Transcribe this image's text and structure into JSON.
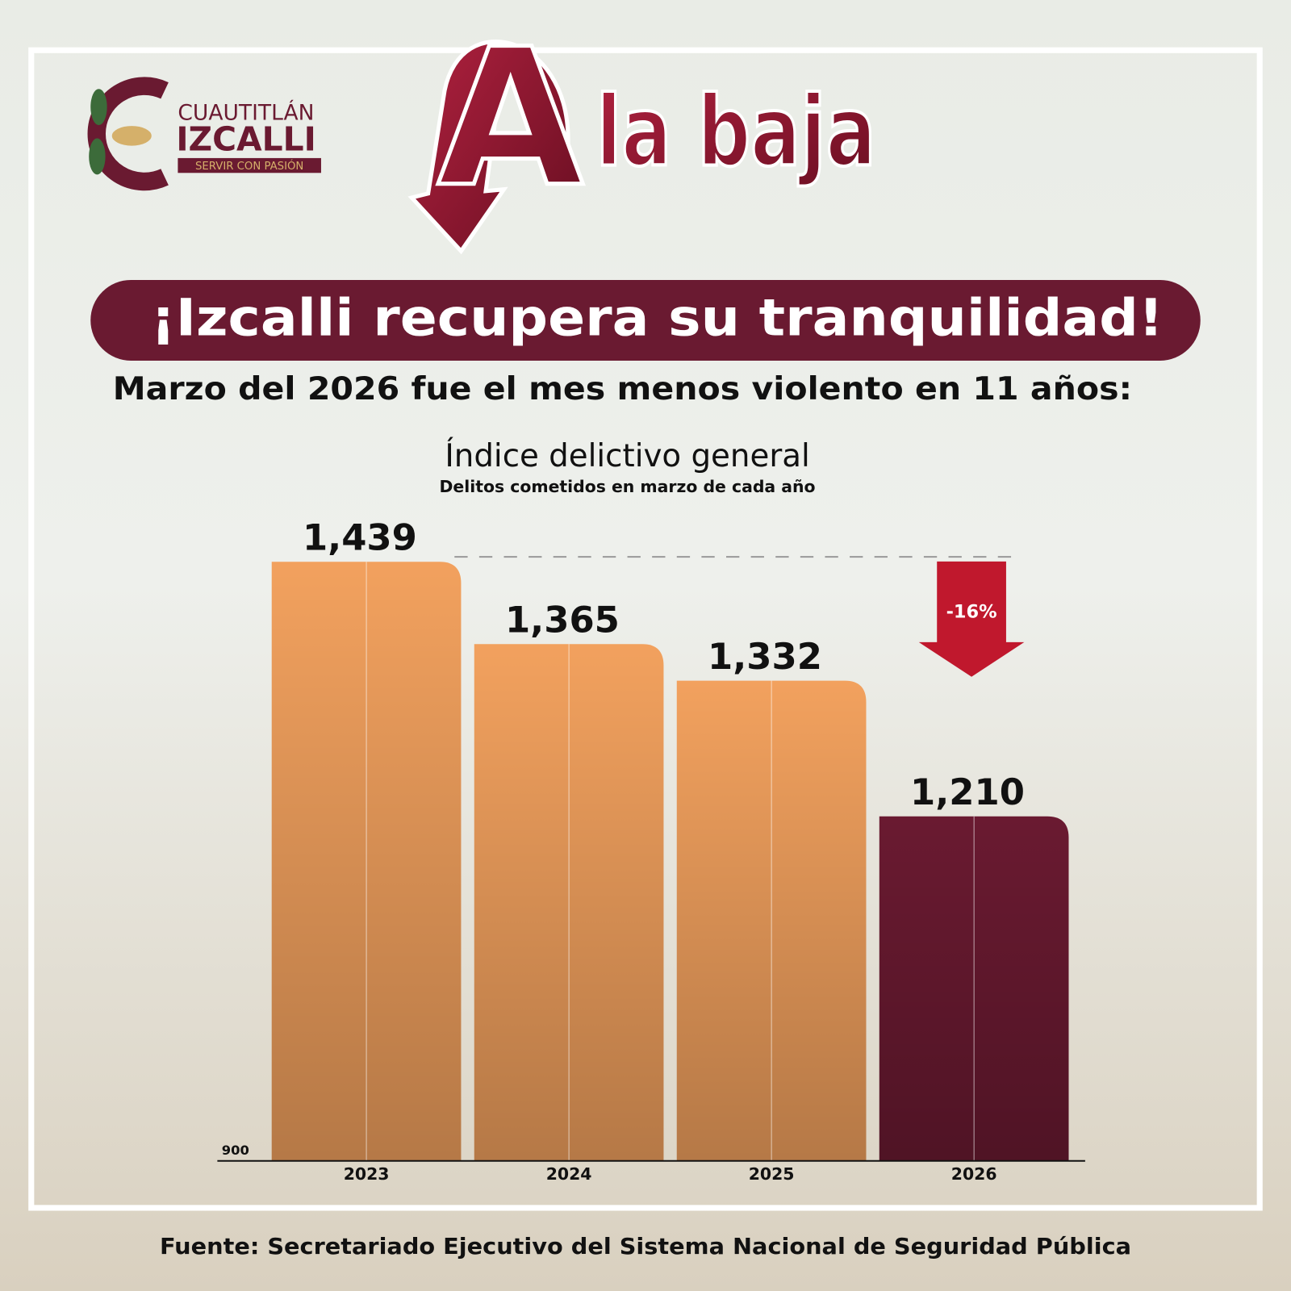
{
  "header": {
    "logo_line1": "CUAUTITLÁN",
    "logo_line2": "IZCALLI",
    "logo_tagline": "SERVIR CON PASIÓN",
    "headline_letter": "A",
    "headline": "la baja",
    "banner": "¡Izcalli recupera su tranquilidad!",
    "statement": "Marzo del 2026 fue el mes menos violento en 11 años:"
  },
  "chart_data": {
    "type": "bar",
    "title": "Índice delictivo general",
    "subtitle": "Delitos cometidos en marzo de cada año",
    "categories": [
      "2023",
      "2024",
      "2025",
      "2026"
    ],
    "values": [
      1439,
      1365,
      1332,
      1210
    ],
    "value_labels": [
      "1,439",
      "1,365",
      "1,332",
      "1,210"
    ],
    "colors": [
      "#f2a15e",
      "#f2a15e",
      "#f2a15e",
      "#6a1a31"
    ],
    "ylim": [
      900,
      1500
    ],
    "yticks": [
      900
    ],
    "annotation": "-16%"
  },
  "footer": {
    "source": "Fuente: Secretariado Ejecutivo del Sistema Nacional de Seguridad Pública"
  }
}
